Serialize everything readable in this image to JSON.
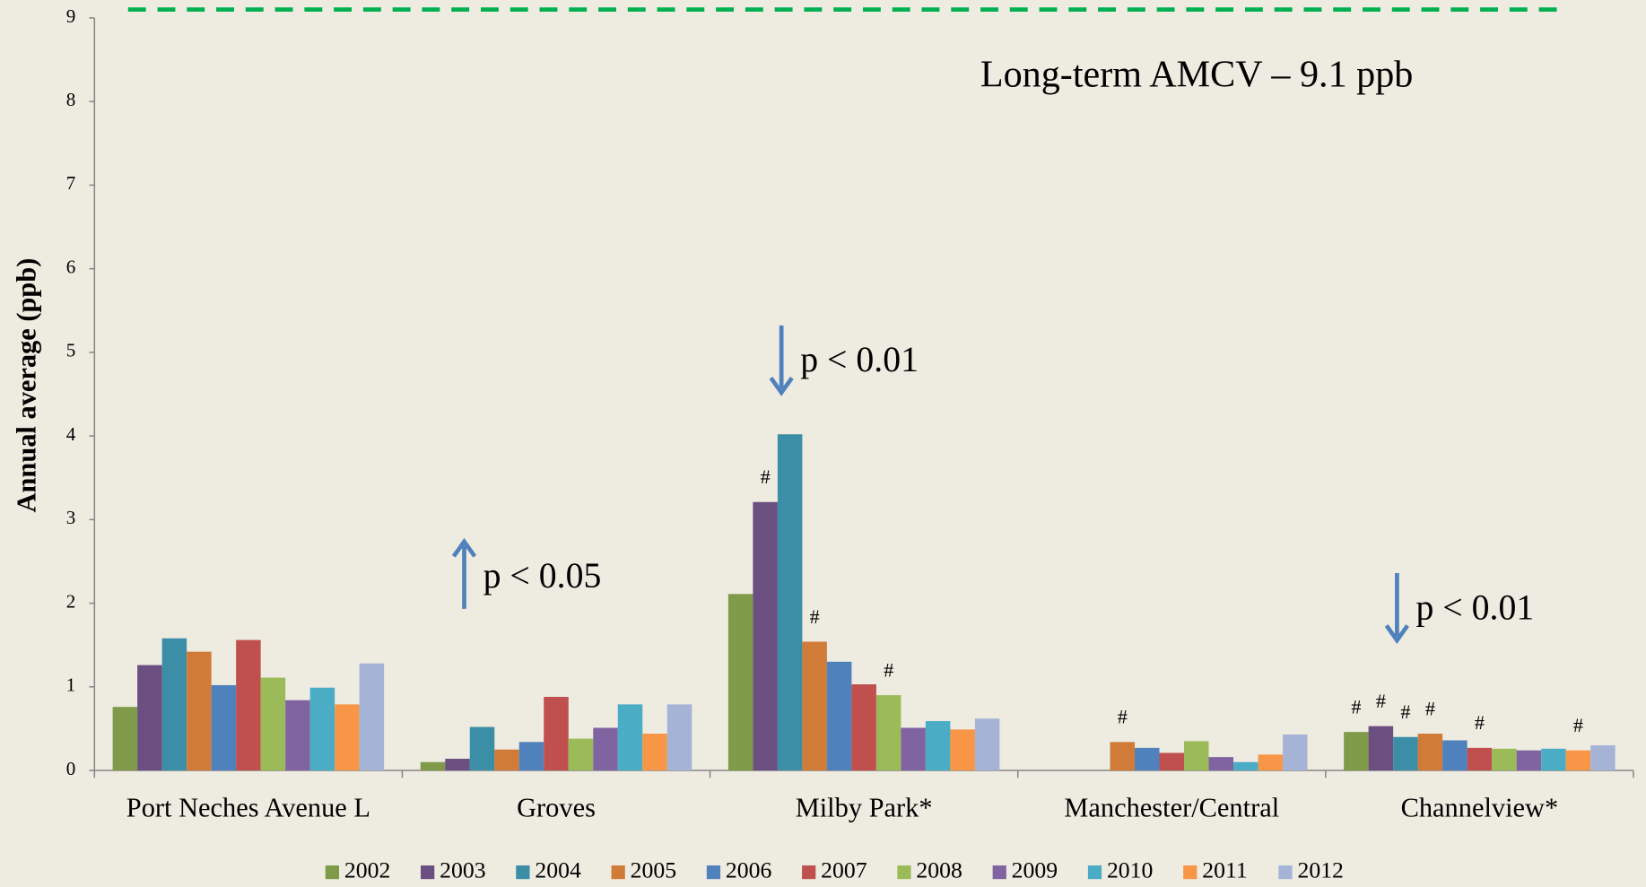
{
  "chart_data": {
    "type": "bar",
    "y_label": "Annual average (ppb)",
    "categories": [
      "Port Neches Avenue L",
      "Groves",
      "Milby Park*",
      "Manchester/Central",
      "Channelview*"
    ],
    "series": [
      {
        "name": "2002",
        "color": "#7f9a48",
        "values": [
          0.76,
          0.1,
          2.11,
          null,
          0.46
        ]
      },
      {
        "name": "2003",
        "color": "#6a4f80",
        "values": [
          1.26,
          0.14,
          3.21,
          null,
          0.53
        ]
      },
      {
        "name": "2004",
        "color": "#3b8ea5",
        "values": [
          1.58,
          0.52,
          4.02,
          null,
          0.4
        ]
      },
      {
        "name": "2005",
        "color": "#d07c38",
        "values": [
          1.42,
          0.25,
          1.54,
          0.34,
          0.44
        ]
      },
      {
        "name": "2006",
        "color": "#4f81bd",
        "values": [
          1.02,
          0.34,
          1.3,
          0.27,
          0.36
        ]
      },
      {
        "name": "2007",
        "color": "#c0504d",
        "values": [
          1.56,
          0.88,
          1.03,
          0.21,
          0.27
        ]
      },
      {
        "name": "2008",
        "color": "#9bbb59",
        "values": [
          1.11,
          0.38,
          0.9,
          0.35,
          0.26
        ]
      },
      {
        "name": "2009",
        "color": "#8064a2",
        "values": [
          0.84,
          0.51,
          0.51,
          0.16,
          0.24
        ]
      },
      {
        "name": "2010",
        "color": "#4bacc6",
        "values": [
          0.99,
          0.79,
          0.59,
          0.1,
          0.26
        ]
      },
      {
        "name": "2011",
        "color": "#f79646",
        "values": [
          0.79,
          0.44,
          0.49,
          0.19,
          0.24
        ]
      },
      {
        "name": "2012",
        "color": "#a5b4d6",
        "values": [
          1.28,
          0.79,
          0.62,
          0.43,
          0.3
        ]
      }
    ],
    "ylim": [
      0,
      9
    ],
    "yticks": [
      0,
      1,
      2,
      3,
      4,
      5,
      6,
      7,
      8,
      9
    ],
    "reference_line": {
      "value": 9.1,
      "color": "#00b050",
      "label": "Long-term AMCV – 9.1 ppb"
    },
    "hash_label": "#",
    "hash_marks": [
      {
        "category": 2,
        "series": 1
      },
      {
        "category": 2,
        "series": 3
      },
      {
        "category": 2,
        "series": 6
      },
      {
        "category": 3,
        "series": 3
      },
      {
        "category": 4,
        "series": 0
      },
      {
        "category": 4,
        "series": 1
      },
      {
        "category": 4,
        "series": 2
      },
      {
        "category": 4,
        "series": 3
      },
      {
        "category": 4,
        "series": 5
      },
      {
        "category": 4,
        "series": 9
      }
    ],
    "trend_annotations": [
      {
        "text": "p < 0.05",
        "category": 1,
        "direction": "up"
      },
      {
        "text": "p < 0.01",
        "category": 2,
        "direction": "down"
      },
      {
        "text": "p < 0.01",
        "category": 4,
        "direction": "down"
      }
    ],
    "arrow_color": "#4f81bd",
    "legend": "bottom"
  }
}
